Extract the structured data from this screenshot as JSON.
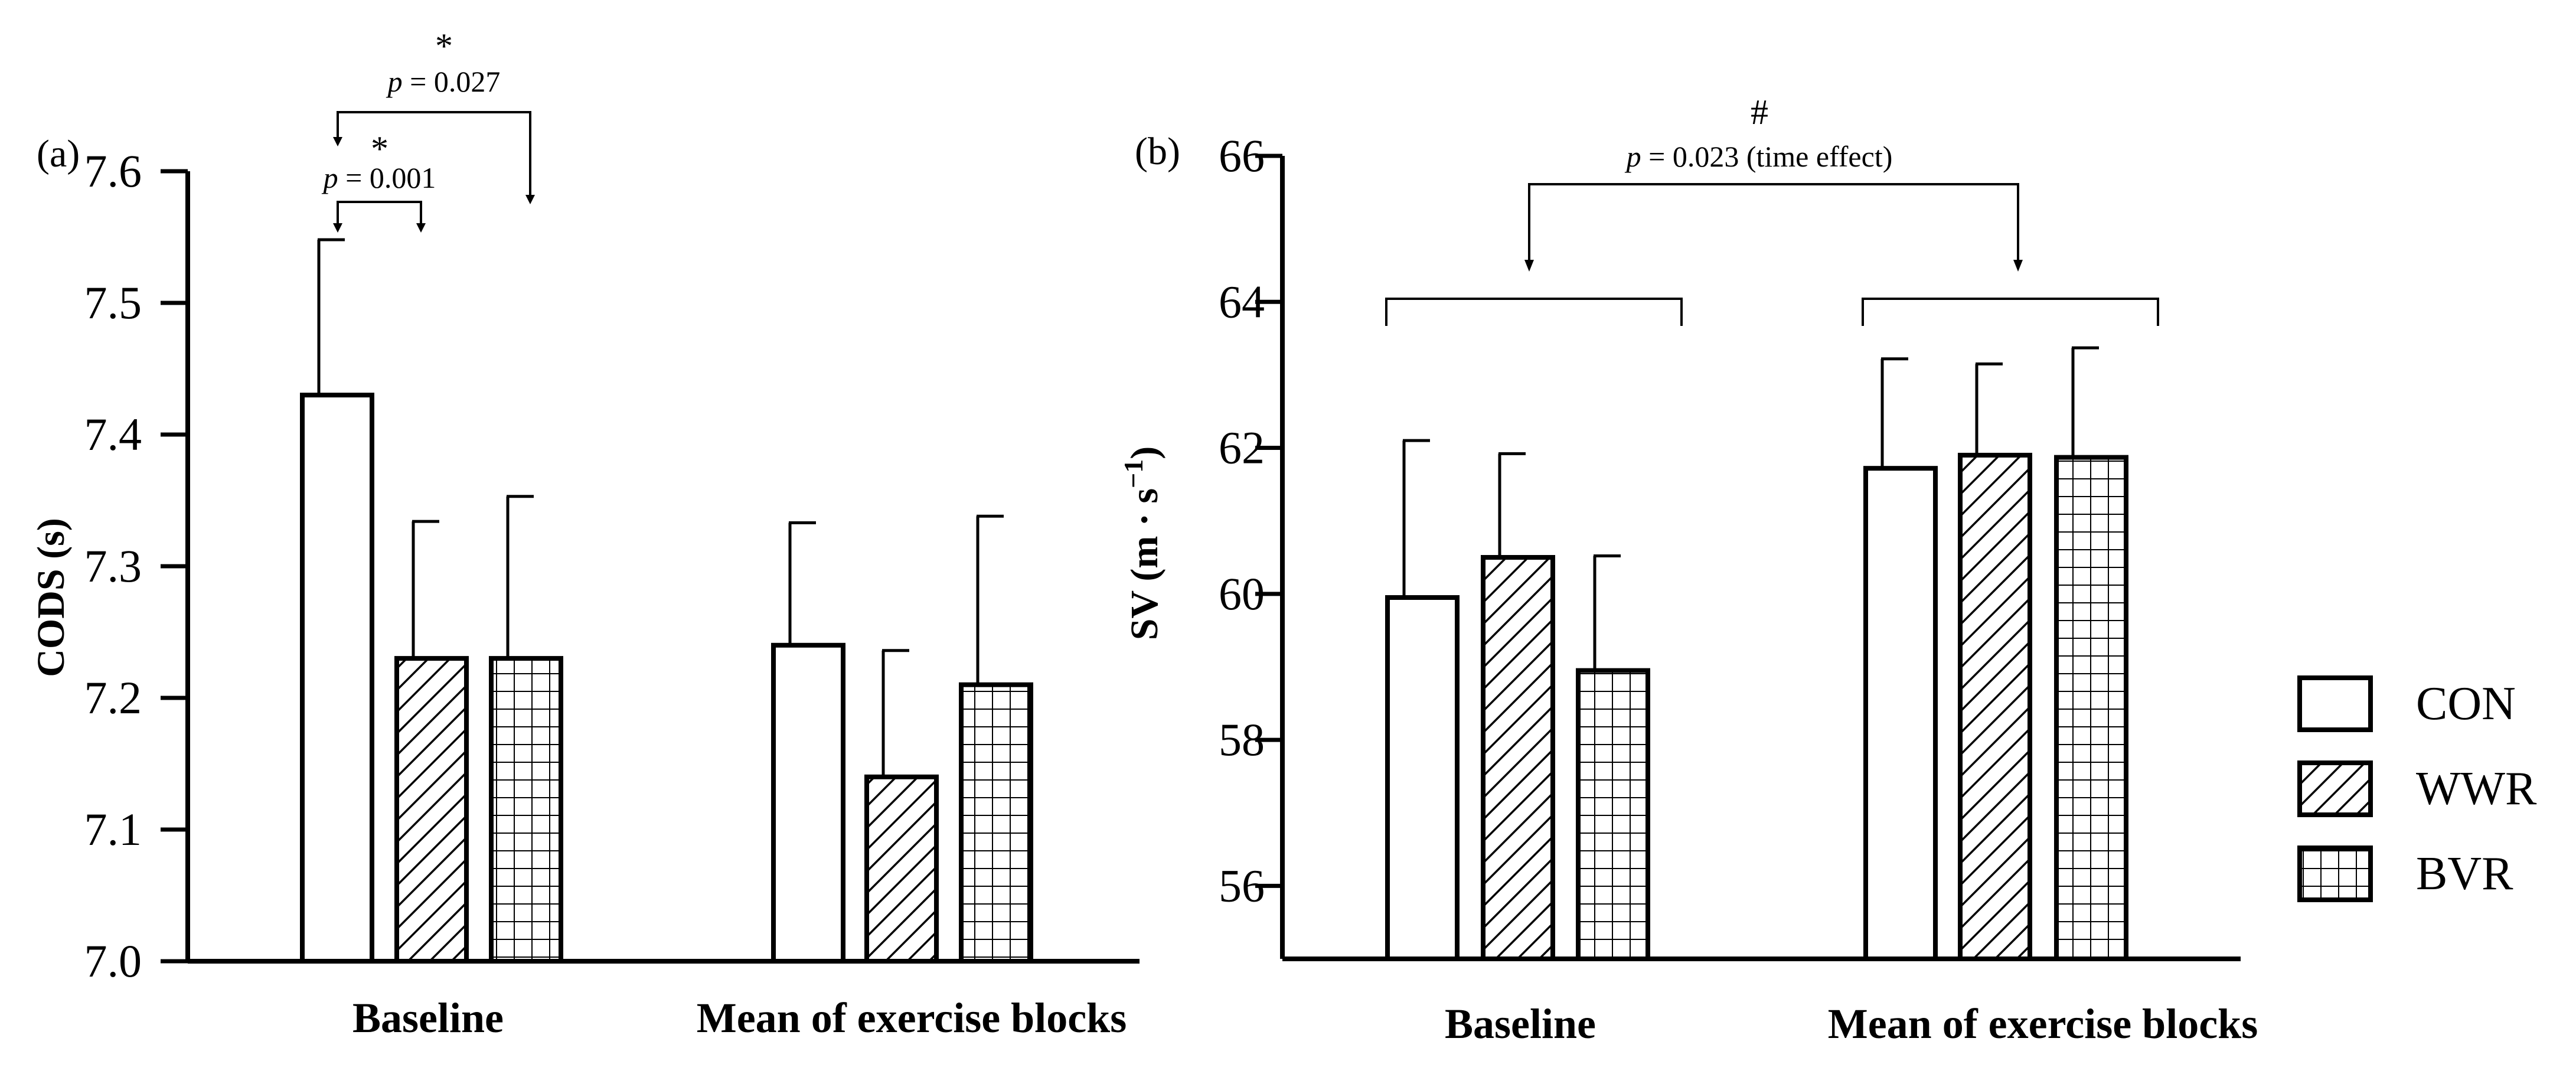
{
  "chart_data": [
    {
      "panel_label": "(a)",
      "type": "bar",
      "ylabel": "CODS (s)",
      "ylim": [
        7.0,
        7.6
      ],
      "yticks": [
        "7.0",
        "7.1",
        "7.2",
        "7.3",
        "7.4",
        "7.5",
        "7.6"
      ],
      "categories": [
        "Baseline",
        "Mean of exercise blocks"
      ],
      "series": [
        {
          "name": "CON",
          "values": [
            7.43,
            7.24
          ],
          "errors": [
            0.118,
            0.093
          ]
        },
        {
          "name": "WWR",
          "values": [
            7.23,
            7.14
          ],
          "errors": [
            0.104,
            0.096
          ]
        },
        {
          "name": "BVR",
          "values": [
            7.23,
            7.21
          ],
          "errors": [
            0.123,
            0.128
          ]
        }
      ],
      "annotations": [
        {
          "star": "*",
          "p": "p",
          "text": " = 0.027"
        },
        {
          "star": "*",
          "p": "p",
          "text": " = 0.001"
        }
      ]
    },
    {
      "panel_label": "(b)",
      "type": "bar",
      "ylabel": "SV (m · s",
      "ylabel_sup": "−1",
      "ylabel_end": ")",
      "ylim": [
        55,
        66
      ],
      "yticks": [
        "56",
        "58",
        "60",
        "62",
        "64",
        "66"
      ],
      "categories": [
        "Baseline",
        "Mean of exercise blocks"
      ],
      "series": [
        {
          "name": "CON",
          "values": [
            59.95,
            61.72
          ],
          "errors": [
            2.15,
            1.5
          ]
        },
        {
          "name": "WWR",
          "values": [
            60.5,
            61.9
          ],
          "errors": [
            1.42,
            1.25
          ]
        },
        {
          "name": "BVR",
          "values": [
            58.95,
            61.87
          ],
          "errors": [
            1.57,
            1.5
          ]
        }
      ],
      "annotations": [
        {
          "star": "#",
          "p": "p",
          "text": " = 0.023 (time effect)"
        }
      ]
    }
  ],
  "legend": [
    {
      "name": "CON",
      "pattern": "open"
    },
    {
      "name": "WWR",
      "pattern": "hatch"
    },
    {
      "name": "BVR",
      "pattern": "grid"
    }
  ]
}
